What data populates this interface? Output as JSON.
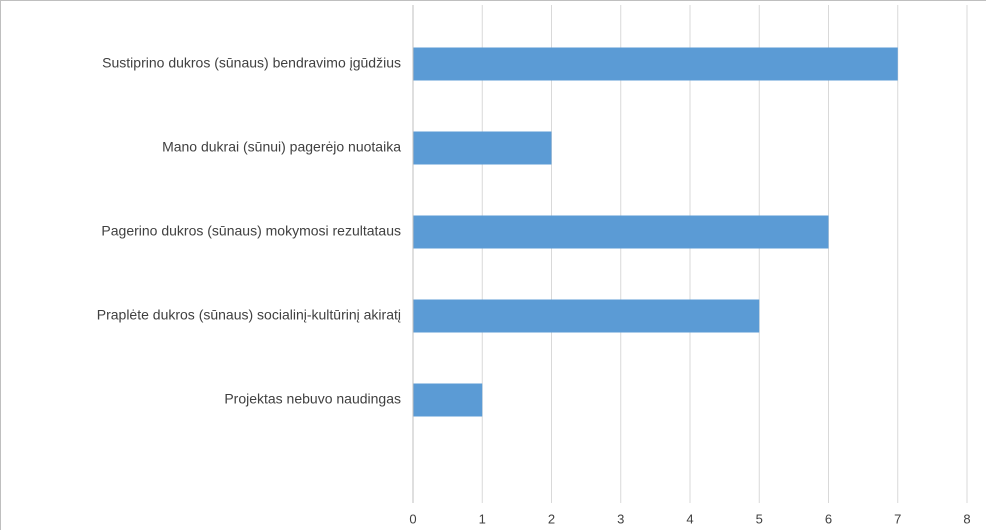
{
  "chart_data": {
    "type": "bar",
    "orientation": "horizontal",
    "title": "",
    "xlabel": "",
    "ylabel": "",
    "categories": [
      "Sustiprino dukros (sūnaus) bendravimo įgūdžius",
      "Mano dukrai (sūnui) pagerėjo nuotaika",
      "Pagerino dukros (sūnaus) mokymosi rezultataus",
      "Praplėte dukros (sūnaus) socialinį-kultūrinį akiratį",
      "Projektas nebuvo naudingas"
    ],
    "values": [
      7,
      2,
      6,
      5,
      1
    ],
    "xlim": [
      0,
      8
    ],
    "xticks": [
      "0",
      "1",
      "2",
      "3",
      "4",
      "5",
      "6",
      "7",
      "8"
    ],
    "grid": "vertical",
    "legend": "none",
    "bar_color": "#5b9bd5"
  }
}
